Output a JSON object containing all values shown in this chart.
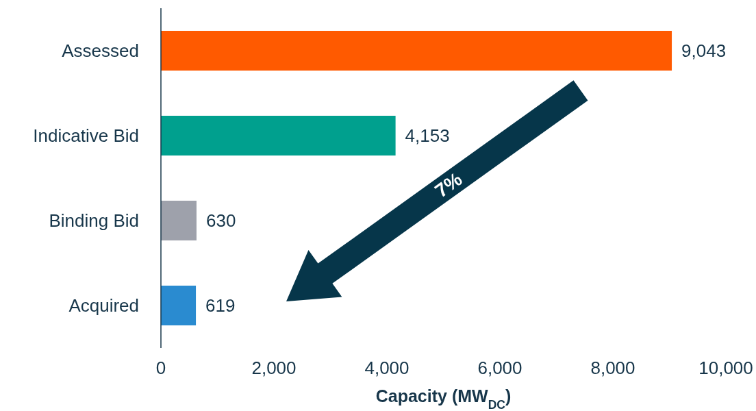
{
  "chart_data": {
    "type": "bar",
    "orientation": "horizontal",
    "xlabel": "Capacity (MW$_{DC}$)",
    "categories": [
      "Assessed",
      "Indicative Bid",
      "Binding Bid",
      "Acquired"
    ],
    "values": [
      9043,
      4153,
      630,
      619
    ],
    "colors": [
      "#ff5a00",
      "#00a08e",
      "#9ea1ab",
      "#2a8bd0"
    ],
    "value_labels": [
      "9,043",
      "4,153",
      "630",
      "619"
    ],
    "xlim": [
      0,
      10000
    ],
    "xticks": [
      0,
      {
        "value": 2000,
        "label": "2,000"
      },
      {
        "value": 4000,
        "label": "4,000"
      },
      {
        "value": 6000,
        "label": "6,000"
      },
      {
        "value": 8000,
        "label": "8,000"
      },
      {
        "value": 10000,
        "label": "10,000"
      }
    ],
    "annotations": [
      "7%"
    ]
  }
}
